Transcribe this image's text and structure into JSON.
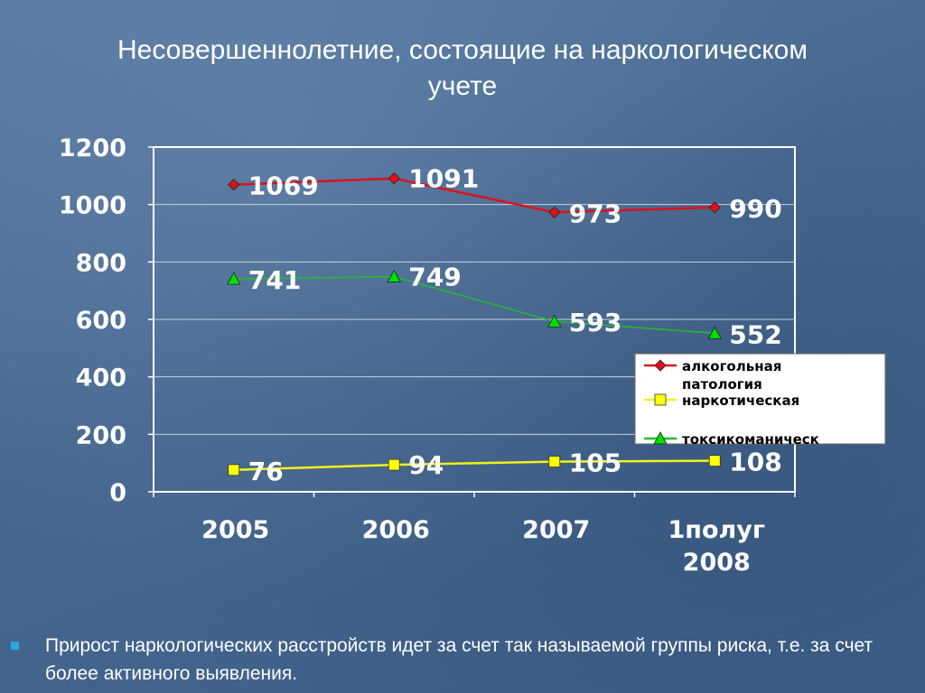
{
  "page": {
    "title_line1": "Несовершеннолетние, состоящие на наркологическом",
    "title_line2": "учете",
    "bullet_text": "Прирост наркологических расстройств идет за счет так называемой группы риска, т.е. за счет более активного выявления."
  },
  "chart_data": {
    "type": "line",
    "categories": [
      "2005",
      "2006",
      "2007",
      "1полуг 2008"
    ],
    "category_lines": [
      [
        "2005"
      ],
      [
        "2006"
      ],
      [
        "2007"
      ],
      [
        "1полуг",
        "2008"
      ]
    ],
    "ylim": [
      0,
      1200
    ],
    "yticks": [
      0,
      200,
      400,
      600,
      800,
      1000,
      1200
    ],
    "grid": true,
    "legend_position": "right",
    "series": [
      {
        "name": "алкогольная патология",
        "legend_lines": [
          "алкогольная",
          "патология"
        ],
        "values": [
          1069,
          1091,
          973,
          990
        ],
        "color": "#e0101a",
        "marker": "diamond",
        "marker_color": "#e0101a"
      },
      {
        "name": "наркотическая",
        "legend_lines": [
          "наркотическая"
        ],
        "values": [
          76,
          94,
          105,
          108
        ],
        "color": "#f2f21a",
        "marker": "square",
        "marker_color": "#ffff00"
      },
      {
        "name": "токсикоманическ",
        "legend_lines": [
          "токсикоманическ"
        ],
        "values": [
          741,
          749,
          593,
          552
        ],
        "color": "#1fbf2f",
        "marker": "triangle",
        "marker_color": "#00e000"
      }
    ]
  }
}
